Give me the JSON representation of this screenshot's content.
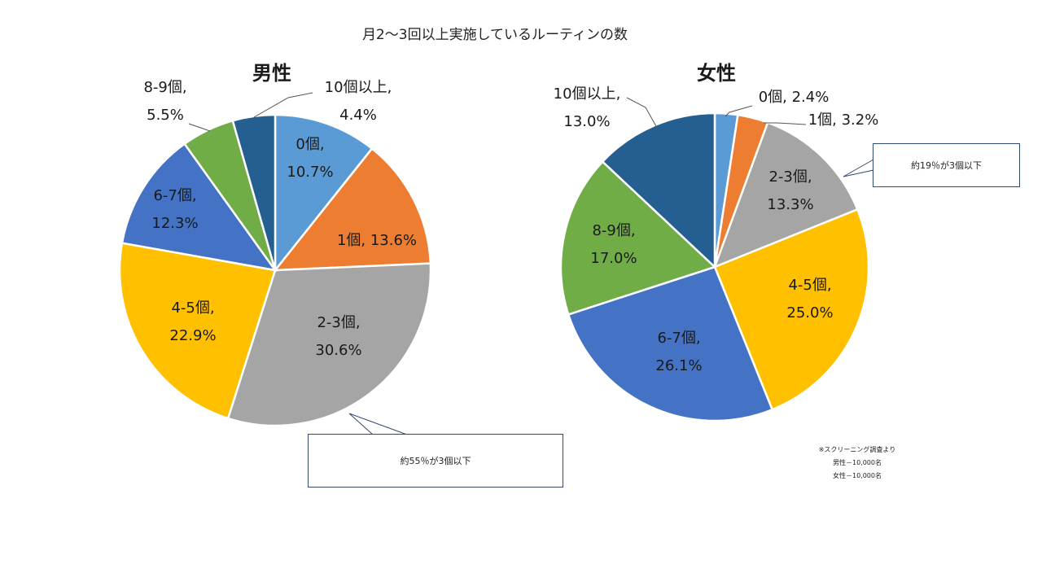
{
  "title": "月2〜3回以上実施しているルーティンの数",
  "chart_data": [
    {
      "type": "pie",
      "title": "男性",
      "slices": [
        {
          "label": "0個",
          "value": 10.7,
          "color": "#5B9BD5",
          "text": [
            "0個,",
            "10.7%"
          ]
        },
        {
          "label": "1個",
          "value": 13.6,
          "color": "#ED7D31",
          "text": [
            "1個, 13.6%"
          ]
        },
        {
          "label": "2-3個",
          "value": 30.6,
          "color": "#A5A5A5",
          "text": [
            "2-3個,",
            "30.6%"
          ]
        },
        {
          "label": "4-5個",
          "value": 22.9,
          "color": "#FFC000",
          "text": [
            "4-5個,",
            "22.9%"
          ]
        },
        {
          "label": "6-7個",
          "value": 12.3,
          "color": "#4472C4",
          "text": [
            "6-7個,",
            "12.3%"
          ]
        },
        {
          "label": "8-9個",
          "value": 5.5,
          "color": "#70AD47",
          "text": [
            "8-9個,",
            "5.5%"
          ]
        },
        {
          "label": "10個以上",
          "value": 4.4,
          "color": "#255E91",
          "text": [
            "10個以上,",
            "4.4%"
          ]
        }
      ]
    },
    {
      "type": "pie",
      "title": "女性",
      "slices": [
        {
          "label": "0個",
          "value": 2.4,
          "color": "#5B9BD5",
          "text": [
            "0個, 2.4%"
          ]
        },
        {
          "label": "1個",
          "value": 3.2,
          "color": "#ED7D31",
          "text": [
            "1個, 3.2%"
          ]
        },
        {
          "label": "2-3個",
          "value": 13.3,
          "color": "#A5A5A5",
          "text": [
            "2-3個,",
            "13.3%"
          ]
        },
        {
          "label": "4-5個",
          "value": 25.0,
          "color": "#FFC000",
          "text": [
            "4-5個,",
            "25.0%"
          ]
        },
        {
          "label": "6-7個",
          "value": 26.1,
          "color": "#4472C4",
          "text": [
            "6-7個,",
            "26.1%"
          ]
        },
        {
          "label": "8-9個",
          "value": 17.0,
          "color": "#70AD47",
          "text": [
            "8-9個,",
            "17.0%"
          ]
        },
        {
          "label": "10個以上",
          "value": 13.0,
          "color": "#255E91",
          "text": [
            "10個以上,",
            "13.0%"
          ]
        }
      ]
    }
  ],
  "callouts": {
    "male": "約55％が3個以下",
    "female": "約19％が3個以下"
  },
  "source_note": [
    "※スクリーニング調査より",
    "男性－10,000名",
    "女性－10,000名"
  ]
}
